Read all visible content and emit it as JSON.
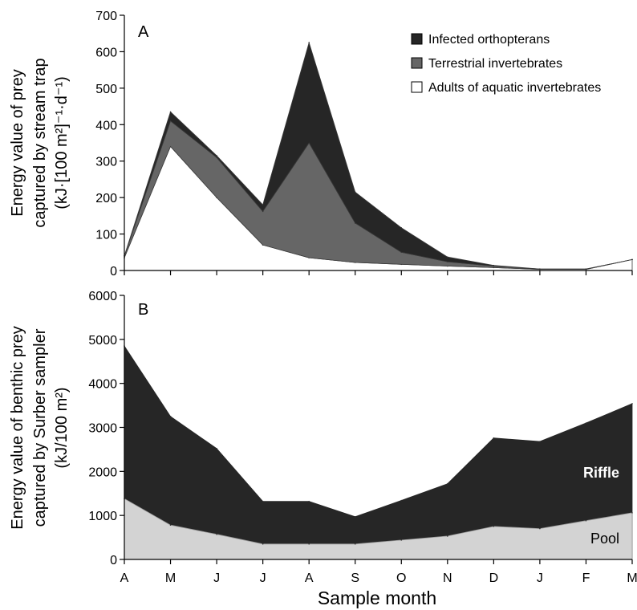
{
  "x_label": "Sample month",
  "chart_data": [
    {
      "type": "area",
      "stacked": true,
      "panel_label": "A",
      "ylabel_lines": [
        "Energy value of prey",
        "captured by stream trap",
        "(kJ·[100 m²]⁻¹·d⁻¹)"
      ],
      "categories": [
        "A",
        "M",
        "J",
        "J",
        "A",
        "S",
        "O",
        "N",
        "D",
        "J",
        "F",
        "M"
      ],
      "ylim": [
        0,
        700
      ],
      "yticks": [
        0,
        100,
        200,
        300,
        400,
        500,
        600,
        700
      ],
      "legend_position": "top-right",
      "series": [
        {
          "name": "Adults of aquatic invertebrates",
          "color": "#ffffff",
          "values": [
            35,
            340,
            200,
            70,
            35,
            22,
            17,
            12,
            8,
            3,
            3,
            30
          ]
        },
        {
          "name": "Terrestrial invertebrates",
          "color": "#666666",
          "values": [
            5,
            70,
            110,
            92,
            315,
            108,
            33,
            12,
            4,
            1,
            1,
            0
          ]
        },
        {
          "name": "Infected orthopterans",
          "color": "#262626",
          "values": [
            0,
            25,
            5,
            18,
            275,
            85,
            67,
            13,
            2,
            0,
            0,
            0
          ]
        }
      ]
    },
    {
      "type": "area",
      "stacked": false,
      "panel_label": "B",
      "ylabel_lines": [
        "Energy value of benthic prey",
        "captured by Surber sampler",
        "(kJ/100 m²)"
      ],
      "categories": [
        "A",
        "M",
        "J",
        "J",
        "A",
        "S",
        "O",
        "N",
        "D",
        "J",
        "F",
        "M"
      ],
      "ylim": [
        0,
        6000
      ],
      "yticks": [
        0,
        1000,
        2000,
        3000,
        4000,
        5000,
        6000
      ],
      "series": [
        {
          "name": "Riffle",
          "color": "#262626",
          "values": [
            4850,
            3250,
            2520,
            1320,
            1320,
            970,
            1340,
            1720,
            2760,
            2680,
            3100,
            3540
          ]
        },
        {
          "name": "Pool",
          "color": "#d3d3d3",
          "values": [
            1380,
            780,
            570,
            350,
            350,
            350,
            440,
            530,
            750,
            700,
            880,
            1060
          ]
        }
      ]
    }
  ]
}
